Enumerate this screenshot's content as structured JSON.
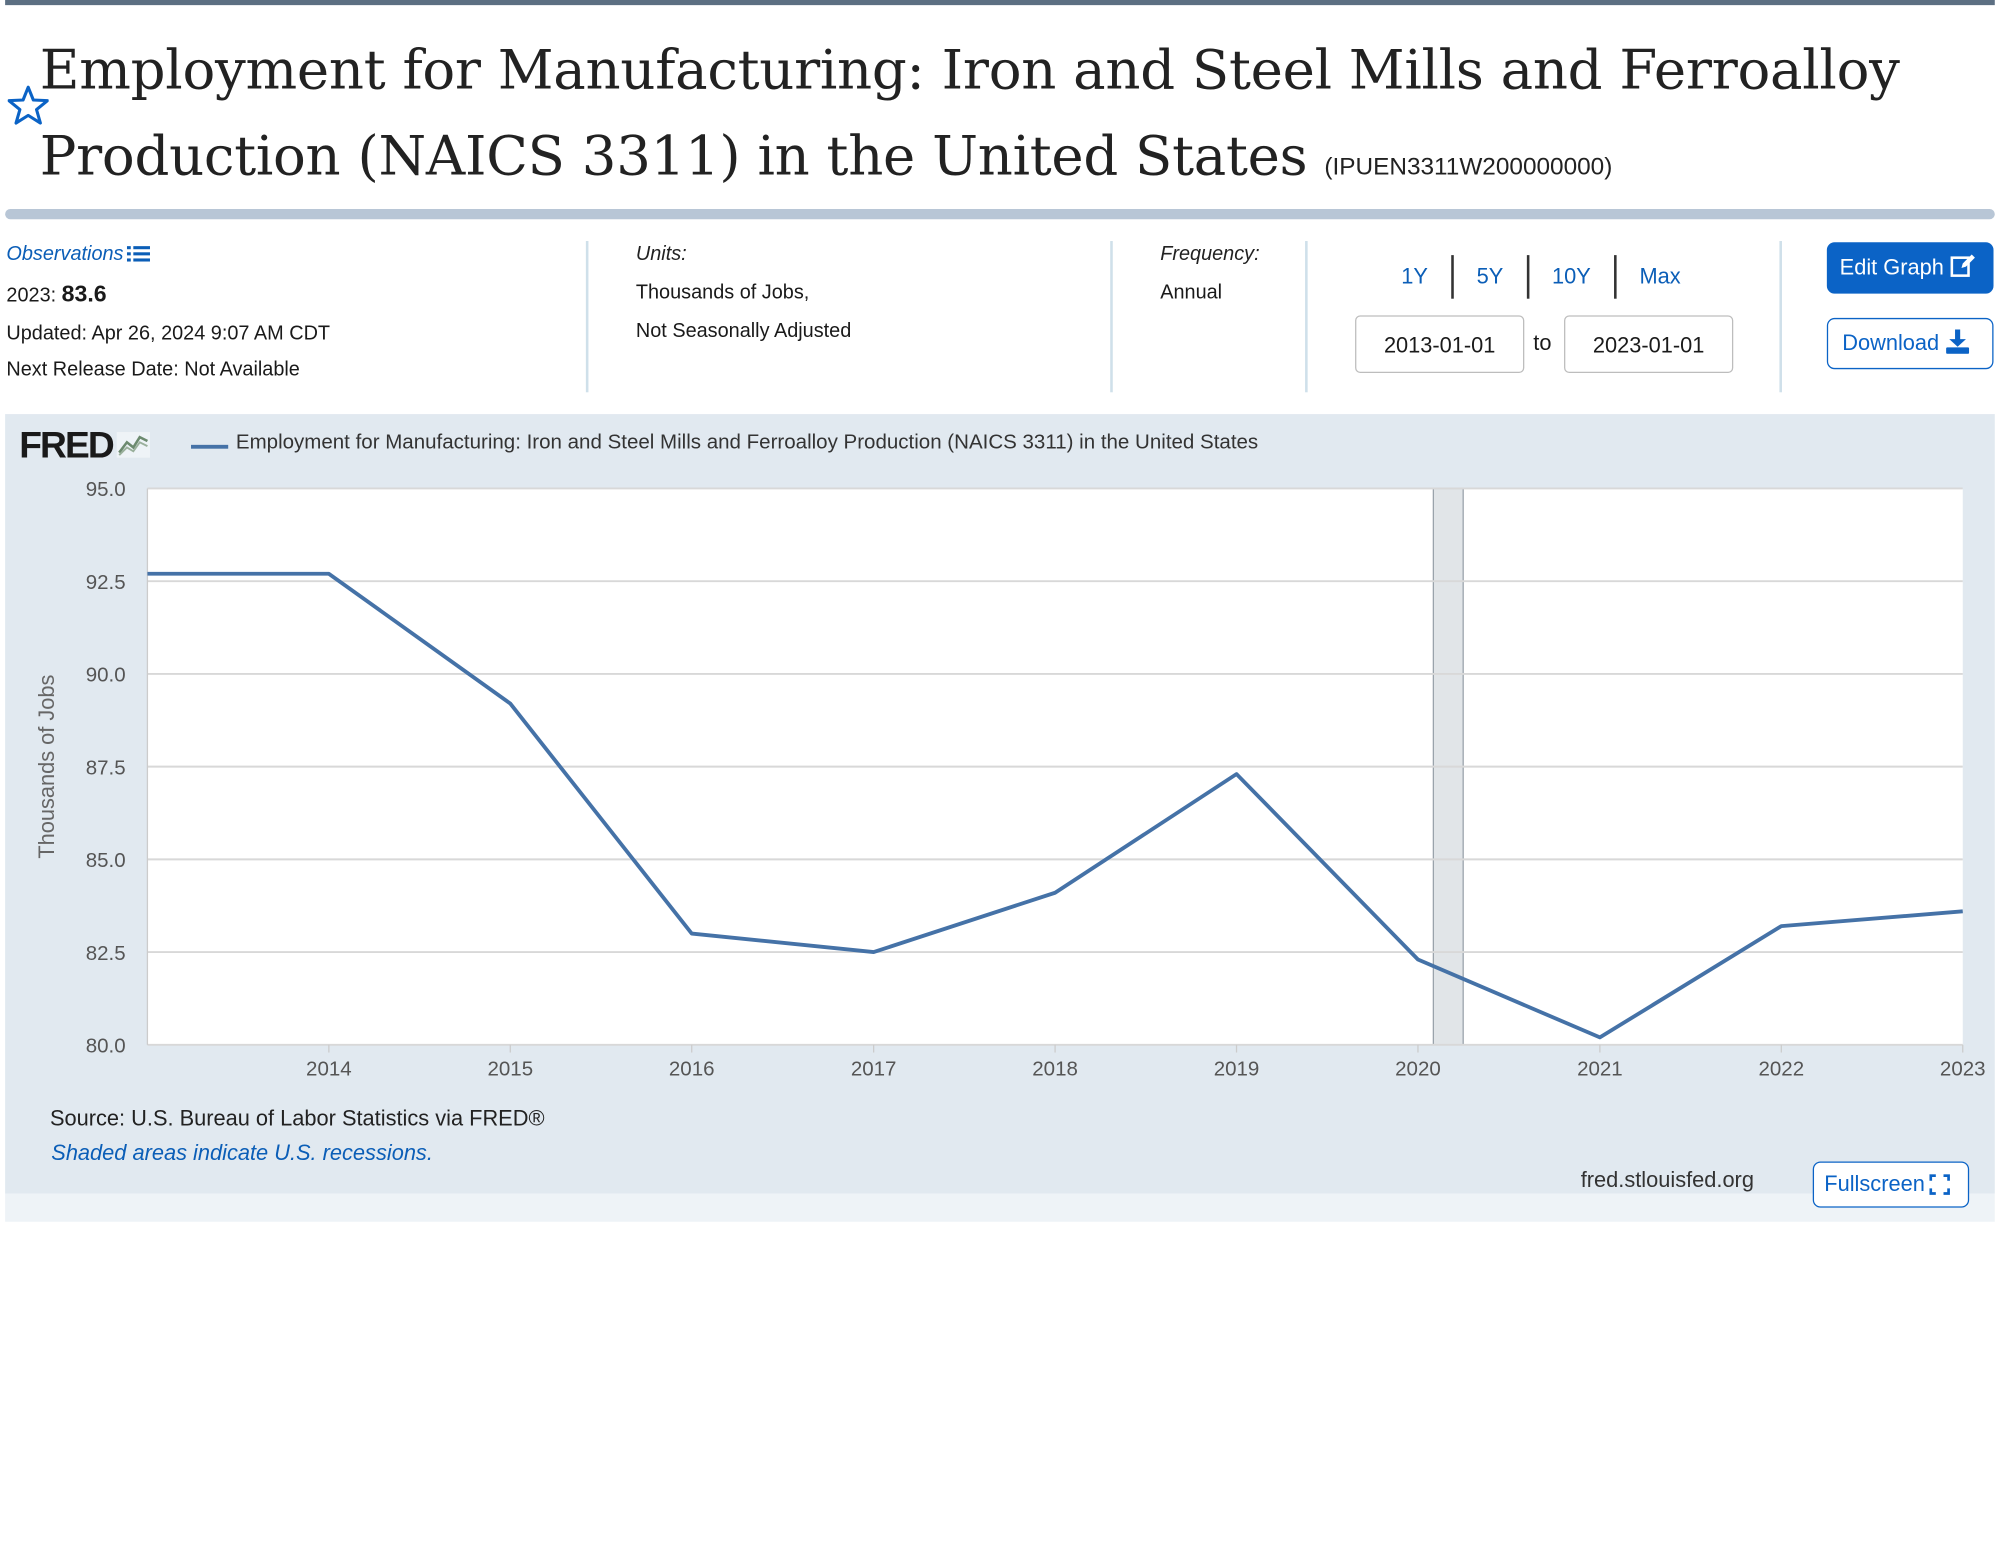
{
  "header": {
    "title": "Employment for Manufacturing: Iron and Steel Mills and Ferroalloy Production (NAICS 3311) in the United States",
    "series_id": "(IPUEN3311W200000000)",
    "favorite_icon": "star-outline-icon"
  },
  "observations": {
    "label": "Observations",
    "latest_period": "2023:",
    "latest_value": "83.6",
    "updated": "Updated: Apr 26, 2024 9:07 AM CDT",
    "next_release": "Next Release Date: Not Available"
  },
  "units": {
    "label": "Units:",
    "line1": "Thousands of Jobs,",
    "line2": "Not Seasonally Adjusted"
  },
  "frequency": {
    "label": "Frequency:",
    "value": "Annual"
  },
  "range": {
    "buttons": [
      "1Y",
      "5Y",
      "10Y",
      "Max"
    ],
    "start": "2013-01-01",
    "to_label": "to",
    "end": "2023-01-01"
  },
  "actions": {
    "edit_label": "Edit Graph",
    "download_label": "Download",
    "fullscreen_label": "Fullscreen"
  },
  "footer": {
    "logo": "FRED",
    "source": "Source: U.S. Bureau of Labor Statistics via FRED®",
    "recession_note": "Shaded areas indicate U.S. recessions.",
    "url": "fred.stlouisfed.org"
  },
  "colors": {
    "series": "#4572a7",
    "recession": "#e1e5e8",
    "accent": "#0b63c6"
  },
  "chart_data": {
    "type": "line",
    "ylabel": "Thousands of Jobs",
    "ylim": [
      80.0,
      95.0
    ],
    "yticks": [
      "80.0",
      "82.5",
      "85.0",
      "87.5",
      "90.0",
      "92.5",
      "95.0"
    ],
    "xlim": [
      "2013-01-01",
      "2023-01-01"
    ],
    "xticks": [
      "2014",
      "2015",
      "2016",
      "2017",
      "2018",
      "2019",
      "2020",
      "2021",
      "2022",
      "2023"
    ],
    "grid": true,
    "legend_position": "top-left",
    "recessions": [
      {
        "start": "2020-02-01",
        "end": "2020-04-01"
      }
    ],
    "series": [
      {
        "name": "Employment for Manufacturing: Iron and Steel Mills and Ferroalloy Production (NAICS 3311) in the United States",
        "x": [
          "2013",
          "2014",
          "2015",
          "2016",
          "2017",
          "2018",
          "2019",
          "2020",
          "2021",
          "2022",
          "2023"
        ],
        "values": [
          92.7,
          92.7,
          89.2,
          83.0,
          82.5,
          84.1,
          87.3,
          82.3,
          80.2,
          83.2,
          83.6
        ]
      }
    ]
  }
}
